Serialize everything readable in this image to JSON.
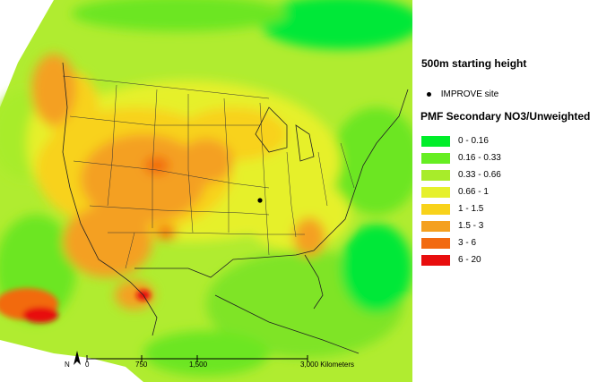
{
  "map": {
    "starting_height": "500m starting height",
    "site_label": "IMPROVE site",
    "legend_title": "PMF Secondary NO3/Unweighted",
    "legend": [
      {
        "label": "0 - 0.16",
        "color": "#00ee2a"
      },
      {
        "label": "0.16 - 0.33",
        "color": "#66ee22"
      },
      {
        "label": "0.33 - 0.66",
        "color": "#a8ec2a"
      },
      {
        "label": "0.66 - 1",
        "color": "#e6f02c"
      },
      {
        "label": "1 - 1.5",
        "color": "#f8d21a"
      },
      {
        "label": "1.5 - 3",
        "color": "#f4a020"
      },
      {
        "label": "3 - 6",
        "color": "#f26a10"
      },
      {
        "label": "6 - 20",
        "color": "#e80e0e"
      }
    ],
    "scale": {
      "labels": [
        "0",
        "750",
        "1,500",
        "3,000 Kilometers"
      ],
      "values_km": [
        0,
        750,
        1500,
        3000
      ]
    },
    "north_label": "N"
  }
}
